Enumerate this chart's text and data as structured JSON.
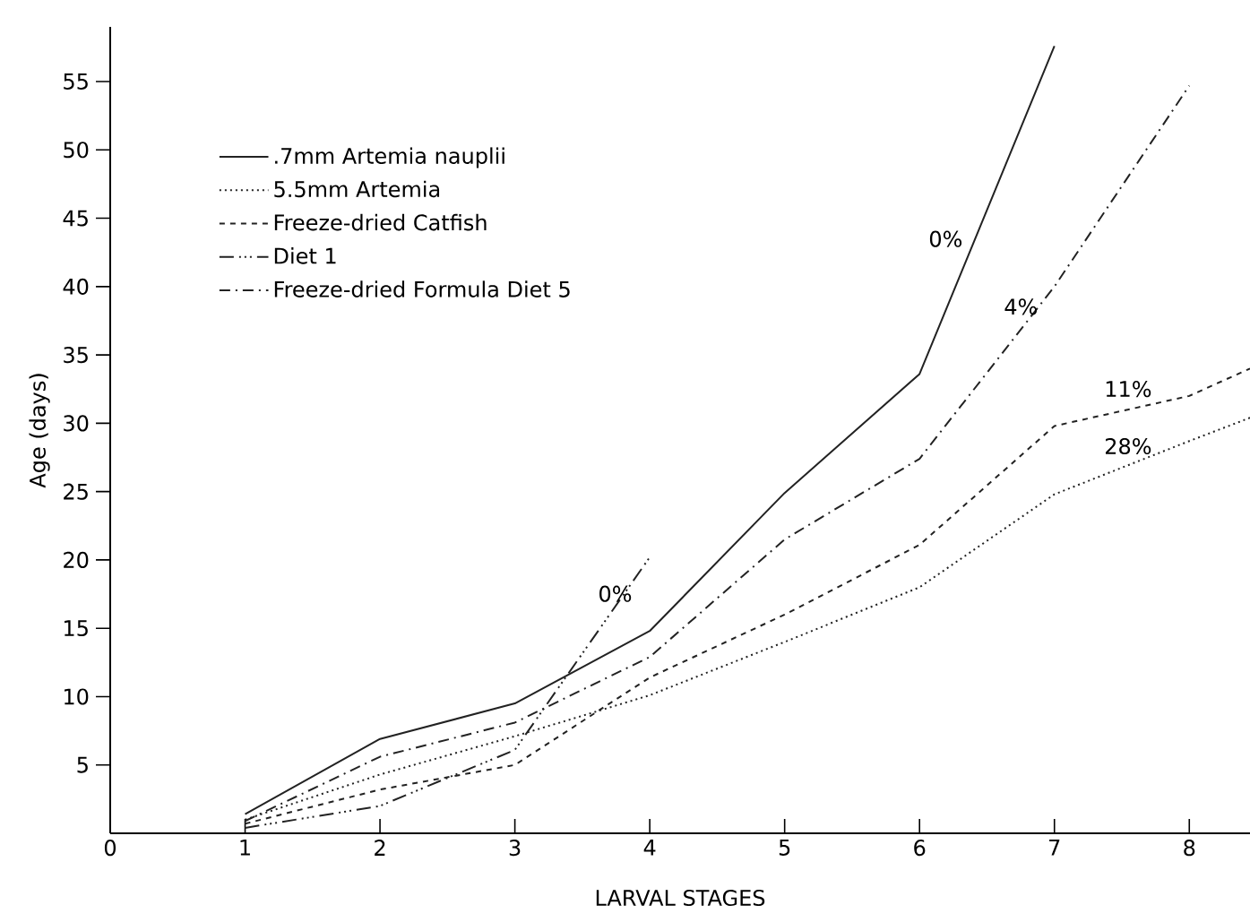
{
  "chart_data": {
    "type": "line",
    "xlabel": "LARVAL STAGES",
    "ylabel": "Age (days)",
    "xlim": [
      0,
      8.45
    ],
    "ylim": [
      0,
      59
    ],
    "xticks": [
      0,
      1,
      2,
      3,
      4,
      5,
      6,
      7,
      8
    ],
    "yticks": [
      5,
      10,
      15,
      20,
      25,
      30,
      35,
      40,
      45,
      50,
      55
    ],
    "legend": "top left",
    "grid": false,
    "marker": "none",
    "series": [
      {
        "name": ".7mm Artemia nauplii",
        "color": "#222222",
        "line_style": "solid",
        "x": [
          1,
          2,
          3,
          4,
          5,
          6,
          7
        ],
        "values": [
          1.4,
          6.9,
          9.5,
          14.8,
          24.9,
          33.6,
          57.6
        ]
      },
      {
        "name": "5.5mm Artemia",
        "color": "#222222",
        "line_style": "dotted",
        "x": [
          1,
          2,
          3,
          4,
          5,
          6,
          7,
          8,
          8.45
        ],
        "values": [
          1.0,
          4.3,
          7.1,
          10.1,
          14,
          18,
          24.8,
          28.7,
          30.4
        ]
      },
      {
        "name": "Freeze-dried Catfish",
        "color": "#222222",
        "line_style": "dashed",
        "x": [
          1,
          2,
          3,
          4,
          5,
          6,
          7,
          8,
          8.45
        ],
        "values": [
          0.7,
          3.2,
          5.0,
          11.4,
          16,
          21.1,
          29.8,
          32.0,
          34.0
        ]
      },
      {
        "name": "Diet 1",
        "color": "#222222",
        "line_style": "dashdotdotted",
        "x": [
          1,
          2,
          3,
          4
        ],
        "values": [
          0.4,
          2.0,
          6.1,
          20.2
        ]
      },
      {
        "name": "Freeze-dried Formula Diet 5",
        "color": "#222222",
        "line_style": "dashdotted",
        "x": [
          1,
          2,
          3,
          4,
          5,
          6,
          7,
          8
        ],
        "values": [
          0.9,
          5.6,
          8.1,
          12.9,
          21.5,
          27.4,
          40,
          54.7
        ]
      }
    ],
    "annotations": [
      "0%",
      "0%",
      "4%",
      "11%",
      "28%"
    ]
  }
}
